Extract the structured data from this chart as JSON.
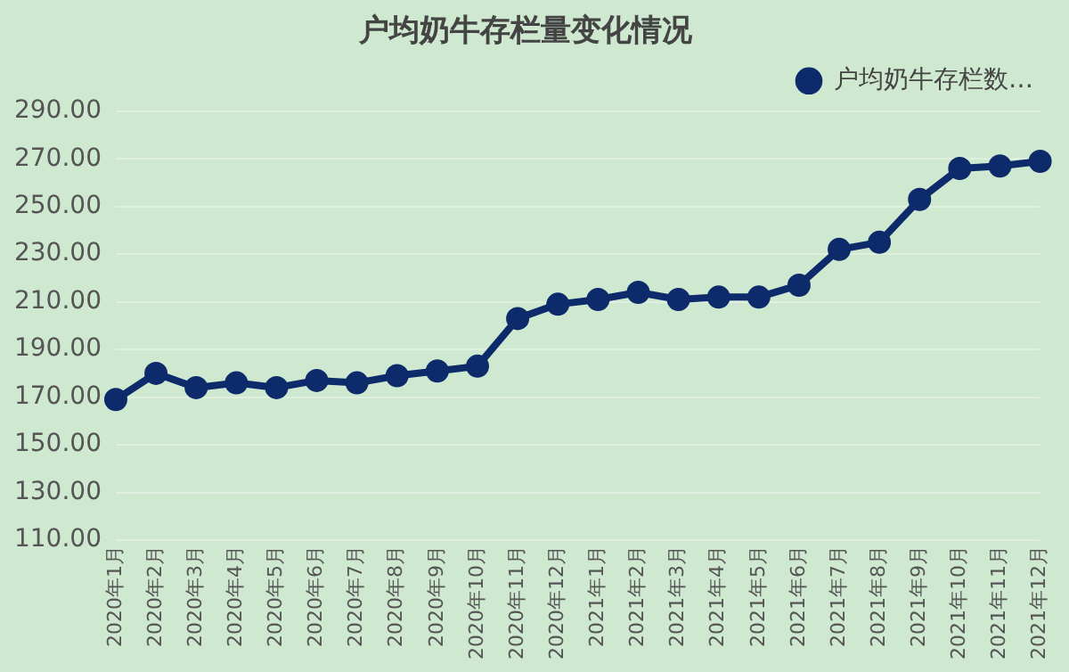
{
  "chart_data": {
    "type": "line",
    "title": "户均奶牛存栏量变化情况",
    "categories": [
      "2020年1月",
      "2020年2月",
      "2020年3月",
      "2020年4月",
      "2020年5月",
      "2020年6月",
      "2020年7月",
      "2020年8月",
      "2020年9月",
      "2020年10月",
      "2020年11月",
      "2020年12月",
      "2021年1月",
      "2021年2月",
      "2021年3月",
      "2021年4月",
      "2021年5月",
      "2021年6月",
      "2021年7月",
      "2021年8月",
      "2021年9月",
      "2021年10月",
      "2021年11月",
      "2021年12月"
    ],
    "series": [
      {
        "name": "户均奶牛存栏数…",
        "color": "#0d2a6b",
        "values": [
          169,
          180,
          174,
          176,
          174,
          177,
          176,
          179,
          181,
          183,
          203,
          209,
          211,
          214,
          211,
          212,
          212,
          217,
          232,
          235,
          253,
          266,
          267,
          269
        ]
      }
    ],
    "ylim": [
      110,
      290
    ],
    "yticks": [
      {
        "value": 110,
        "label": "110.00"
      },
      {
        "value": 130,
        "label": "130.00"
      },
      {
        "value": 150,
        "label": "150.00"
      },
      {
        "value": 170,
        "label": "170.00"
      },
      {
        "value": 190,
        "label": "190.00"
      },
      {
        "value": 210,
        "label": "210.00"
      },
      {
        "value": 230,
        "label": "230.00"
      },
      {
        "value": 250,
        "label": "250.00"
      },
      {
        "value": 270,
        "label": "270.00"
      },
      {
        "value": 290,
        "label": "290.00"
      }
    ],
    "grid": "y",
    "legend": "top right",
    "marker": "circle",
    "line_style": "solid"
  }
}
